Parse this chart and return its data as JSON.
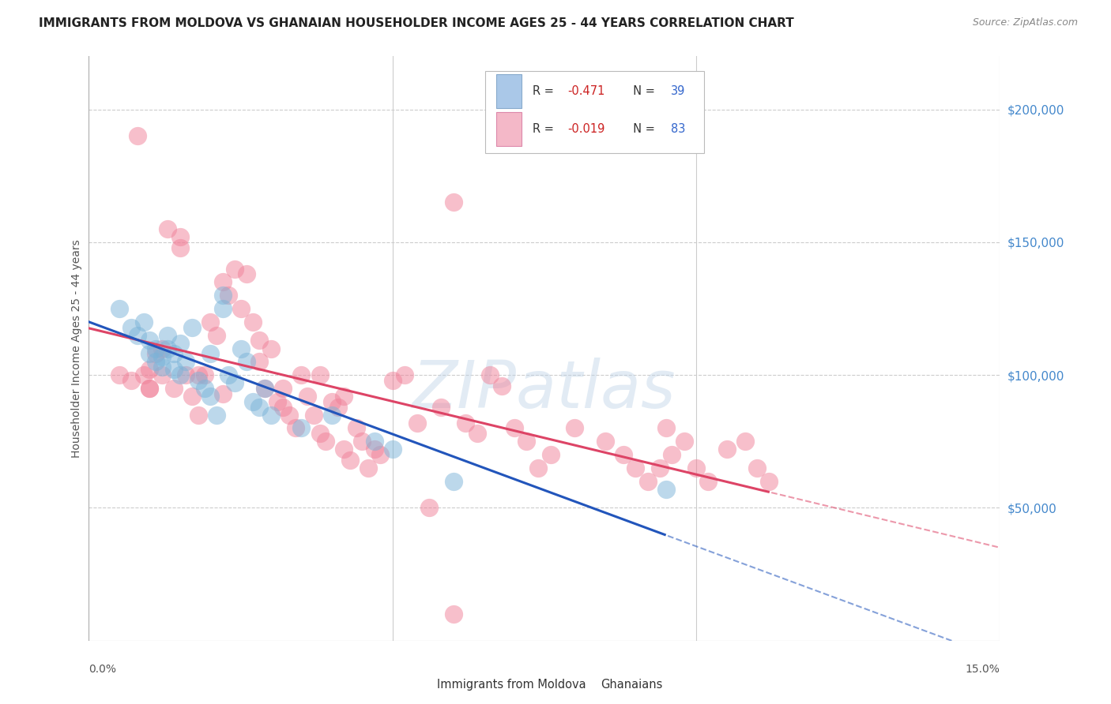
{
  "title": "IMMIGRANTS FROM MOLDOVA VS GHANAIAN HOUSEHOLDER INCOME AGES 25 - 44 YEARS CORRELATION CHART",
  "source": "Source: ZipAtlas.com",
  "ylabel": "Householder Income Ages 25 - 44 years",
  "xlim": [
    0.0,
    0.15
  ],
  "ylim": [
    0,
    220000
  ],
  "moldova_color": "#7ab3d8",
  "ghana_color": "#f08098",
  "moldova_line_color": "#2255bb",
  "ghana_line_color": "#dd4466",
  "moldova_legend_color": "#aac8e8",
  "ghana_legend_color": "#f4b8c8",
  "watermark": "ZIPatlas",
  "background_color": "#ffffff",
  "grid_color": "#cccccc",
  "title_color": "#222222",
  "axis_label_color": "#555555",
  "right_tick_color": "#4488cc",
  "moldova_x": [
    0.005,
    0.007,
    0.008,
    0.009,
    0.01,
    0.01,
    0.011,
    0.011,
    0.012,
    0.012,
    0.013,
    0.013,
    0.014,
    0.014,
    0.015,
    0.015,
    0.016,
    0.017,
    0.018,
    0.019,
    0.02,
    0.02,
    0.021,
    0.022,
    0.022,
    0.023,
    0.024,
    0.025,
    0.026,
    0.027,
    0.028,
    0.029,
    0.03,
    0.035,
    0.04,
    0.047,
    0.05,
    0.06,
    0.095
  ],
  "moldova_y": [
    125000,
    118000,
    115000,
    120000,
    113000,
    108000,
    110000,
    105000,
    107000,
    103000,
    115000,
    110000,
    108000,
    102000,
    112000,
    100000,
    105000,
    118000,
    98000,
    95000,
    108000,
    92000,
    85000,
    130000,
    125000,
    100000,
    97000,
    110000,
    105000,
    90000,
    88000,
    95000,
    85000,
    80000,
    85000,
    75000,
    72000,
    60000,
    57000
  ],
  "ghana_x": [
    0.005,
    0.007,
    0.008,
    0.009,
    0.01,
    0.01,
    0.011,
    0.012,
    0.013,
    0.014,
    0.015,
    0.016,
    0.017,
    0.018,
    0.019,
    0.02,
    0.021,
    0.022,
    0.023,
    0.024,
    0.025,
    0.026,
    0.027,
    0.028,
    0.029,
    0.03,
    0.031,
    0.032,
    0.033,
    0.034,
    0.035,
    0.036,
    0.037,
    0.038,
    0.039,
    0.04,
    0.041,
    0.042,
    0.043,
    0.044,
    0.045,
    0.046,
    0.047,
    0.048,
    0.05,
    0.052,
    0.054,
    0.056,
    0.058,
    0.06,
    0.062,
    0.064,
    0.066,
    0.068,
    0.07,
    0.072,
    0.074,
    0.076,
    0.08,
    0.085,
    0.088,
    0.09,
    0.092,
    0.094,
    0.095,
    0.096,
    0.098,
    0.1,
    0.102,
    0.105,
    0.108,
    0.11,
    0.112,
    0.038,
    0.028,
    0.015,
    0.012,
    0.01,
    0.032,
    0.042,
    0.018,
    0.022,
    0.06
  ],
  "ghana_y": [
    100000,
    98000,
    190000,
    100000,
    102000,
    95000,
    108000,
    100000,
    155000,
    95000,
    148000,
    100000,
    92000,
    85000,
    100000,
    120000,
    115000,
    135000,
    130000,
    140000,
    125000,
    138000,
    120000,
    105000,
    95000,
    110000,
    90000,
    95000,
    85000,
    80000,
    100000,
    92000,
    85000,
    78000,
    75000,
    90000,
    88000,
    72000,
    68000,
    80000,
    75000,
    65000,
    72000,
    70000,
    98000,
    100000,
    82000,
    50000,
    88000,
    165000,
    82000,
    78000,
    100000,
    96000,
    80000,
    75000,
    65000,
    70000,
    80000,
    75000,
    70000,
    65000,
    60000,
    65000,
    80000,
    70000,
    75000,
    65000,
    60000,
    72000,
    75000,
    65000,
    60000,
    100000,
    113000,
    152000,
    110000,
    95000,
    88000,
    92000,
    100000,
    93000,
    10000
  ]
}
